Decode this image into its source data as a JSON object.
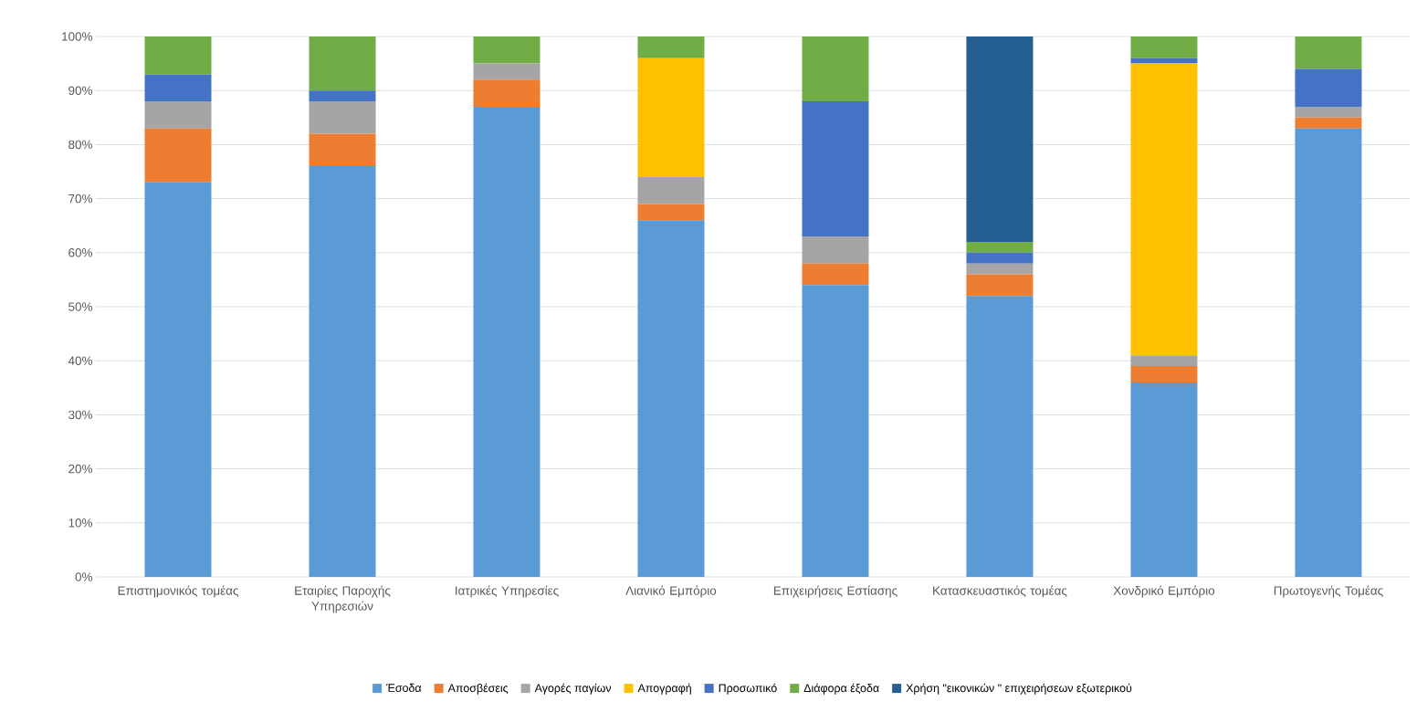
{
  "chart_data": {
    "type": "bar",
    "stacked": true,
    "categories": [
      "Επιστημονικός τομέας",
      "Εταιρίες Παροχής Υπηρεσιών",
      "Ιατρικές Υπηρεσίες",
      "Λιανικό Εμπόριο",
      "Επιχειρήσεις Εστίασης",
      "Κατασκευαστικός τομέας",
      "Χονδρικό Εμπόριο",
      "Πρωτογενής Τομέας"
    ],
    "series": [
      {
        "name": "Έσοδα",
        "color": "#5b9bd5",
        "values": [
          73,
          76,
          87,
          66,
          54,
          52,
          36,
          83
        ]
      },
      {
        "name": "Αποσβέσεις",
        "color": "#ed7d31",
        "values": [
          10,
          6,
          5,
          3,
          4,
          4,
          3,
          2
        ]
      },
      {
        "name": "Αγορές παγίων",
        "color": "#a5a5a5",
        "values": [
          5,
          6,
          3,
          5,
          5,
          2,
          2,
          2
        ]
      },
      {
        "name": "Απογραφή",
        "color": "#ffc000",
        "values": [
          0,
          0,
          0,
          22,
          0,
          0,
          54,
          0
        ]
      },
      {
        "name": "Προσωπικό",
        "color": "#4472c4",
        "values": [
          5,
          2,
          0,
          0,
          25,
          2,
          1,
          7
        ]
      },
      {
        "name": "Διάφορα έξοδα",
        "color": "#70ad47",
        "values": [
          7,
          10,
          5,
          4,
          12,
          2,
          4,
          6
        ]
      },
      {
        "name": "Χρήση \"εικονικών \" επιχειρήσεων εξωτερικού",
        "color": "#255e91",
        "values": [
          0,
          0,
          0,
          0,
          0,
          38,
          0,
          0
        ]
      }
    ],
    "ylim": [
      0,
      100
    ],
    "yticks": [
      {
        "value": 0,
        "label": "0%"
      },
      {
        "value": 10,
        "label": "10%"
      },
      {
        "value": 20,
        "label": "20%"
      },
      {
        "value": 30,
        "label": "30%"
      },
      {
        "value": 40,
        "label": "40%"
      },
      {
        "value": 50,
        "label": "50%"
      },
      {
        "value": 60,
        "label": "60%"
      },
      {
        "value": 70,
        "label": "70%"
      },
      {
        "value": 80,
        "label": "80%"
      },
      {
        "value": 90,
        "label": "90%"
      },
      {
        "value": 100,
        "label": "100%"
      }
    ],
    "grid": "y",
    "legend": "bottom"
  }
}
